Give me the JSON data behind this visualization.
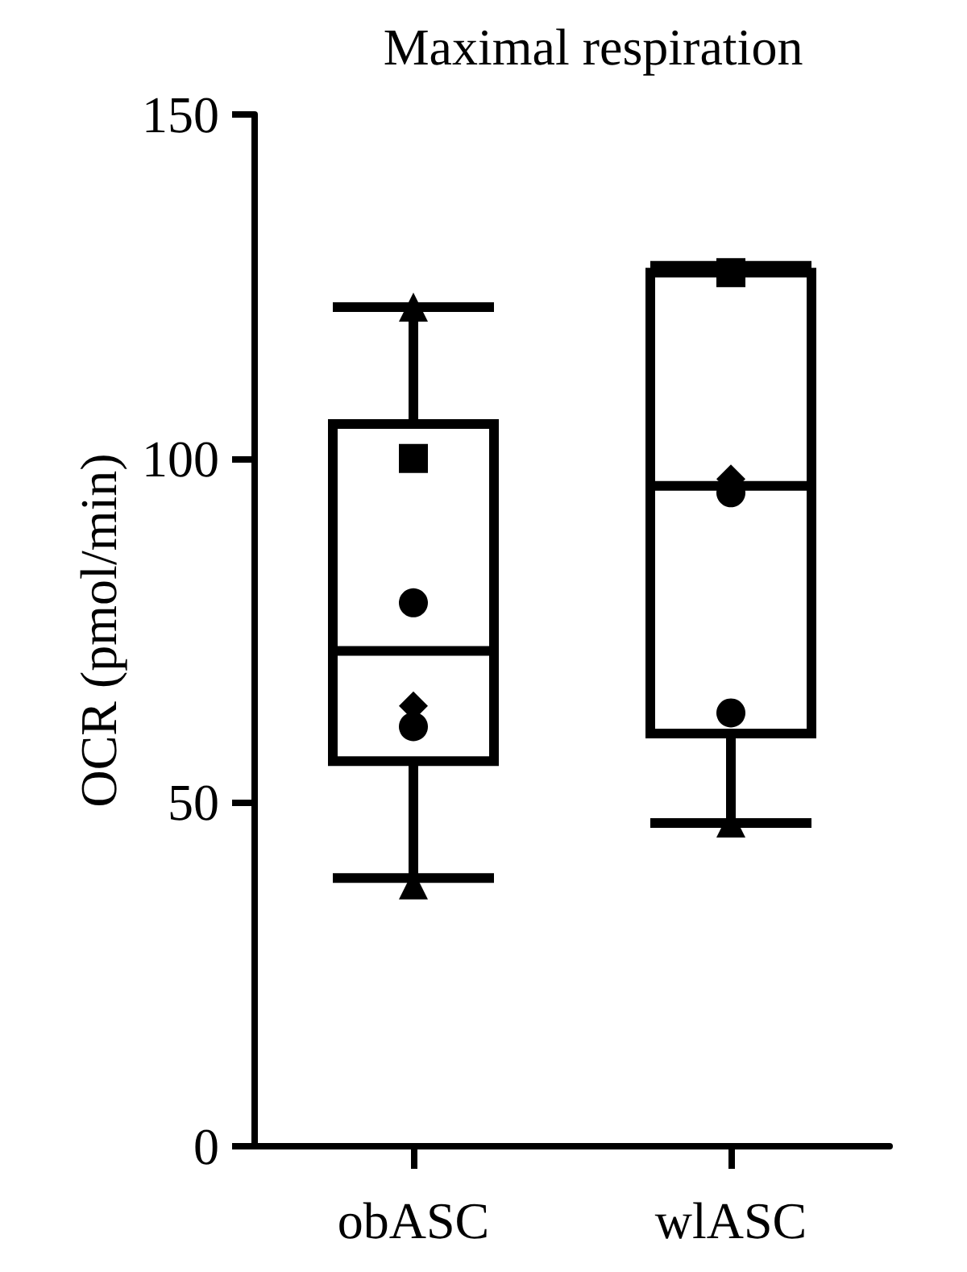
{
  "chart_data": {
    "type": "box",
    "title": "Maximal respiration",
    "ylabel": "OCR (pmol/min)",
    "categories": [
      "obASC",
      "wlASC"
    ],
    "boxes": [
      {
        "low": 39,
        "q1": 56,
        "median": 72,
        "q3": 105,
        "high": 122
      },
      {
        "low": 47,
        "q1": 60,
        "median": 96,
        "q3": 127,
        "high": 128
      }
    ],
    "series": [
      {
        "type": "scatter",
        "marker": "square",
        "color": "#000000",
        "x": [
          "obASC",
          "wlASC"
        ],
        "values": [
          100,
          127
        ]
      },
      {
        "type": "scatter",
        "marker": "triangle",
        "color": "#000000",
        "x": [
          "obASC",
          "obASC",
          "wlASC"
        ],
        "values": [
          122,
          38,
          47
        ]
      },
      {
        "type": "scatter",
        "marker": "circle",
        "color": "#000000",
        "x": [
          "obASC",
          "obASC",
          "wlASC",
          "wlASC"
        ],
        "values": [
          79,
          61,
          95,
          63
        ]
      },
      {
        "type": "scatter",
        "marker": "diamond",
        "color": "#000000",
        "x": [
          "obASC",
          "wlASC"
        ],
        "values": [
          64,
          97
        ]
      }
    ],
    "ylim": [
      0,
      150
    ],
    "yticks": [
      0,
      50,
      100,
      150
    ],
    "grid": false
  }
}
